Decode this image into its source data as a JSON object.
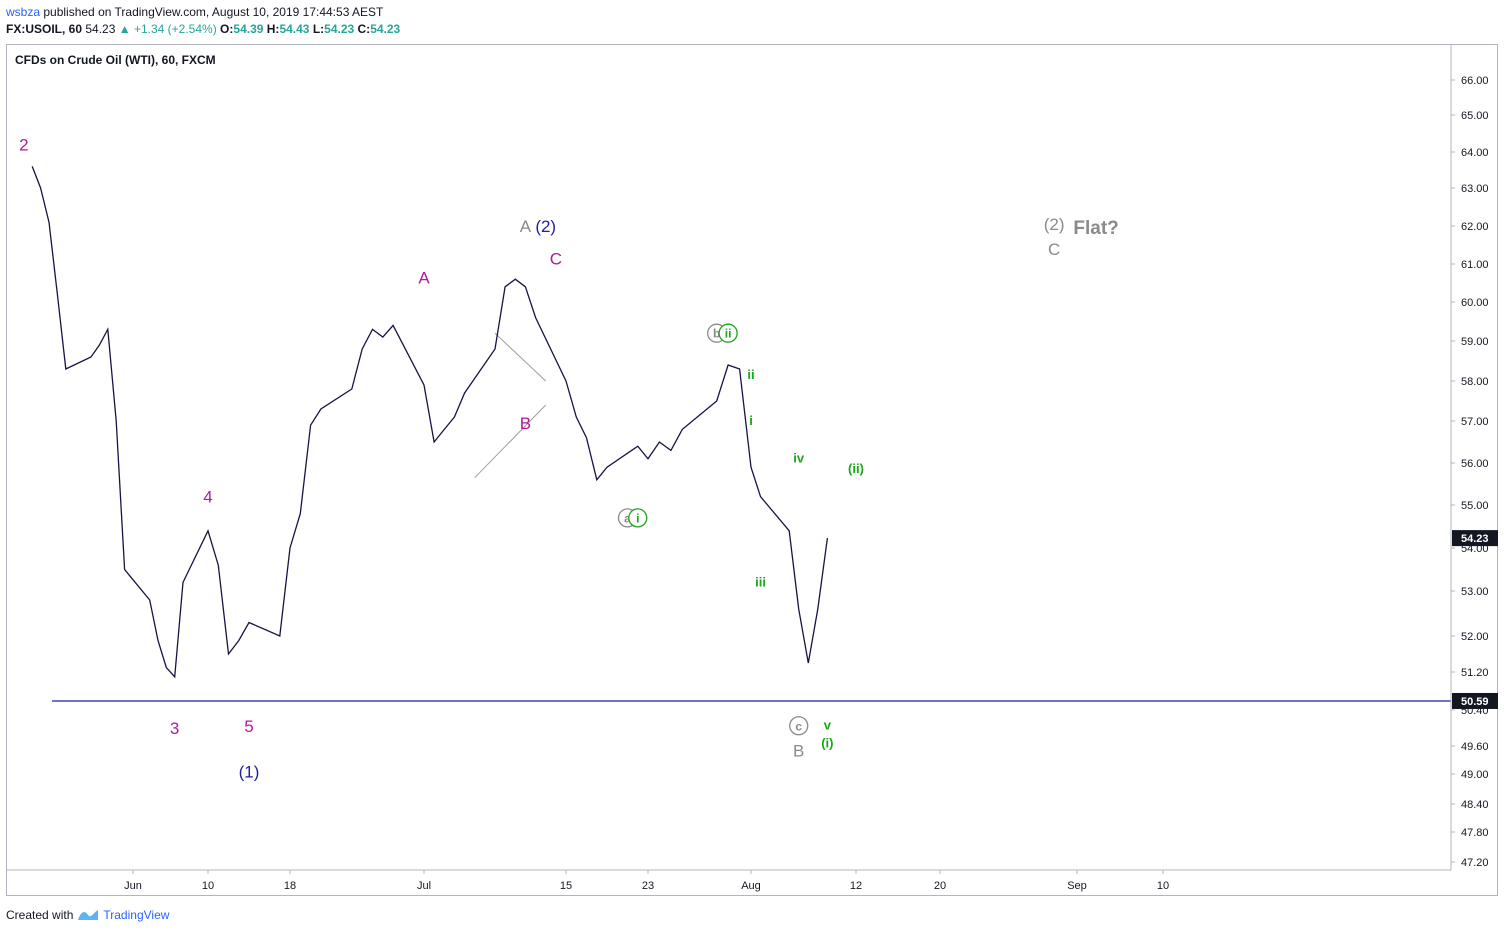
{
  "header": {
    "user": "wsbza",
    "published": "published on TradingView.com, August 10, 2019 17:44:53 AEST",
    "symbol_line_prefix": "FX:USOIL, 60",
    "last": "54.23",
    "change": "+1.34 (+2.54%)",
    "o_label": "O:",
    "o": "54.39",
    "h_label": "H:",
    "h": "54.43",
    "l_label": "L:",
    "l": "54.23",
    "c_label": "C:",
    "c": "54.23"
  },
  "chart_title": "CFDs on Crude Oil (WTI), 60, FXCM",
  "footer": {
    "created": "Created with",
    "brand": "TradingView"
  },
  "colors": {
    "candles": "#1a1244",
    "magenta": "#b5179e",
    "blue": "#1f1fa8",
    "green": "#1aa61a",
    "gray": "#8a8a8a",
    "line": "#1f1fa8",
    "price_label_bg": "#131722"
  },
  "chart_data": {
    "type": "line",
    "title": "CFDs on Crude Oil (WTI), 60, FXCM",
    "xlabel": "",
    "ylabel": "",
    "ylim": [
      46.9,
      66.6
    ],
    "y_ticks": [
      66.0,
      65.0,
      64.0,
      63.0,
      62.0,
      61.0,
      60.0,
      59.0,
      58.0,
      57.0,
      56.0,
      55.0,
      54.0,
      53.0,
      52.0,
      51.2,
      50.4,
      49.6,
      49.0,
      48.4,
      47.8,
      47.2
    ],
    "y_tick_labels": [
      "66.00",
      "65.00",
      "64.00",
      "63.00",
      "62.00",
      "61.00",
      "60.00",
      "59.00",
      "58.00",
      "57.00",
      "56.00",
      "55.00",
      "54.00",
      "53.00",
      "52.00",
      "51.20",
      "50.40",
      "49.60",
      "49.00",
      "48.40",
      "47.80",
      "47.20"
    ],
    "x_tick_labels": [
      {
        "label": "Jun",
        "date": "2019-06-01"
      },
      {
        "label": "10",
        "date": "2019-06-10"
      },
      {
        "label": "18",
        "date": "2019-06-18"
      },
      {
        "label": "Jul",
        "date": "2019-07-01"
      },
      {
        "label": "15",
        "date": "2019-07-15"
      },
      {
        "label": "23",
        "date": "2019-07-23"
      },
      {
        "label": "Aug",
        "date": "2019-08-01"
      },
      {
        "label": "12",
        "date": "2019-08-12"
      },
      {
        "label": "20",
        "date": "2019-08-20"
      },
      {
        "label": "Sep",
        "date": "2019-09-01"
      },
      {
        "label": "10",
        "date": "2019-09-10"
      }
    ],
    "series": [
      {
        "x": [
          "2019-05-20",
          "2019-05-21",
          "2019-05-22",
          "2019-05-23",
          "2019-05-24",
          "2019-05-27",
          "2019-05-28",
          "2019-05-29",
          "2019-05-30",
          "2019-05-31",
          "2019-06-03",
          "2019-06-04",
          "2019-06-05",
          "2019-06-06",
          "2019-06-07",
          "2019-06-10",
          "2019-06-11",
          "2019-06-12",
          "2019-06-13",
          "2019-06-14",
          "2019-06-17",
          "2019-06-18",
          "2019-06-19",
          "2019-06-20",
          "2019-06-21",
          "2019-06-24",
          "2019-06-25",
          "2019-06-26",
          "2019-06-27",
          "2019-06-28",
          "2019-07-01",
          "2019-07-02",
          "2019-07-03",
          "2019-07-04",
          "2019-07-05",
          "2019-07-08",
          "2019-07-09",
          "2019-07-10",
          "2019-07-11",
          "2019-07-12",
          "2019-07-15",
          "2019-07-16",
          "2019-07-17",
          "2019-07-18",
          "2019-07-19",
          "2019-07-22",
          "2019-07-23",
          "2019-07-24",
          "2019-07-25",
          "2019-07-26",
          "2019-07-29",
          "2019-07-30",
          "2019-07-31",
          "2019-08-01",
          "2019-08-02",
          "2019-08-05",
          "2019-08-06",
          "2019-08-07",
          "2019-08-08",
          "2019-08-09"
        ],
        "y": [
          63.6,
          63.0,
          62.1,
          60.2,
          58.3,
          58.6,
          58.9,
          59.3,
          57.0,
          53.5,
          52.8,
          51.9,
          51.3,
          51.1,
          53.2,
          54.4,
          53.6,
          51.6,
          51.9,
          52.3,
          52.0,
          54.0,
          54.8,
          56.9,
          57.3,
          57.8,
          58.8,
          59.3,
          59.1,
          59.4,
          57.9,
          56.5,
          56.8,
          57.1,
          57.7,
          58.8,
          60.4,
          60.6,
          60.4,
          59.6,
          58.0,
          57.1,
          56.6,
          55.6,
          55.9,
          56.4,
          56.1,
          56.5,
          56.3,
          56.8,
          57.5,
          58.4,
          58.3,
          55.9,
          55.2,
          54.4,
          52.6,
          51.4,
          52.6,
          54.23
        ]
      }
    ],
    "horizontal_line": 50.59,
    "price_labels": [
      {
        "value": 54.23,
        "label": "54.23"
      },
      {
        "value": 50.59,
        "label": "50.59"
      }
    ],
    "annotations": [
      {
        "text": "2",
        "color": "magenta",
        "x": "2019-05-19",
        "y": 64.2
      },
      {
        "text": "4",
        "color": "magenta",
        "x": "2019-06-10",
        "y": 55.2
      },
      {
        "text": "3",
        "color": "magenta",
        "x": "2019-06-06",
        "y": 50.0
      },
      {
        "text": "5",
        "color": "magenta",
        "x": "2019-06-14",
        "y": 50.05
      },
      {
        "text": "(1)",
        "color": "blue",
        "x": "2019-06-14",
        "y": 49.05
      },
      {
        "text": "A",
        "color": "magenta",
        "x": "2019-07-01",
        "y": 60.65
      },
      {
        "text": "B",
        "color": "magenta",
        "x": "2019-07-11",
        "y": 56.95
      },
      {
        "text": "C",
        "color": "magenta",
        "x": "2019-07-14",
        "y": 61.15
      },
      {
        "text": "A",
        "color": "gray",
        "x": "2019-07-11",
        "y": 62.0
      },
      {
        "text": "(2)",
        "color": "blue",
        "x": "2019-07-13",
        "y": 62.0
      },
      {
        "text": "a",
        "color": "gray",
        "circled": true,
        "x": "2019-07-21",
        "y": 54.7
      },
      {
        "text": "i",
        "color": "green",
        "circled": true,
        "x": "2019-07-22",
        "y": 54.7
      },
      {
        "text": "b",
        "color": "gray",
        "circled": true,
        "x": "2019-07-29",
        "y": 59.2
      },
      {
        "text": "ii",
        "color": "green",
        "circled": true,
        "x": "2019-07-30",
        "y": 59.2
      },
      {
        "text": "ii",
        "color": "green",
        "x": "2019-08-01",
        "y": 58.2
      },
      {
        "text": "i",
        "color": "green",
        "x": "2019-08-01",
        "y": 57.05
      },
      {
        "text": "iii",
        "color": "green",
        "x": "2019-08-02",
        "y": 53.25
      },
      {
        "text": "iv",
        "color": "green",
        "x": "2019-08-06",
        "y": 56.15
      },
      {
        "text": "(ii)",
        "color": "green",
        "x": "2019-08-12",
        "y": 55.9
      },
      {
        "text": "v",
        "color": "green",
        "x": "2019-08-09",
        "y": 50.1
      },
      {
        "text": "(i)",
        "color": "green",
        "x": "2019-08-09",
        "y": 49.7
      },
      {
        "text": "c",
        "color": "gray",
        "circled": true,
        "x": "2019-08-06",
        "y": 50.05
      },
      {
        "text": "B",
        "color": "gray",
        "x": "2019-08-06",
        "y": 49.5
      },
      {
        "text": "(2)",
        "color": "gray",
        "x": "2019-08-30",
        "y": 62.05
      },
      {
        "text": "C",
        "color": "gray",
        "x": "2019-08-30",
        "y": 61.4
      },
      {
        "text": "Flat?",
        "color": "gray",
        "bold": true,
        "x": "2019-09-03",
        "y": 61.95
      }
    ]
  }
}
